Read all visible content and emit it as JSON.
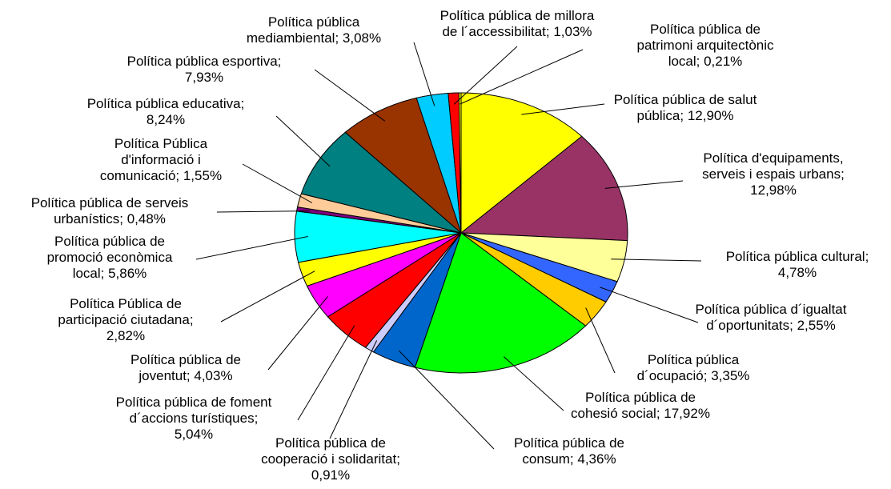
{
  "chart_data": {
    "type": "pie",
    "title": "",
    "legend": "none",
    "start_angle_deg": 90,
    "direction": "clockwise",
    "slices": [
      {
        "label_lines": [
          "Política  pública de salut",
          "pública; 12,90%"
        ],
        "value": 12.9,
        "color": "#FFFF00"
      },
      {
        "label_lines": [
          "Política d'equipaments,",
          "serveis i espais urbans;",
          "12,98%"
        ],
        "value": 12.98,
        "color": "#993366"
      },
      {
        "label_lines": [
          "Política pública cultural;",
          "4,78%"
        ],
        "value": 4.78,
        "color": "#FFFF99"
      },
      {
        "label_lines": [
          "Política pública d´igualtat",
          "d´oportunitats; 2,55%"
        ],
        "value": 2.55,
        "color": "#3366FF"
      },
      {
        "label_lines": [
          "Política pública",
          "d´ocupació; 3,35%"
        ],
        "value": 3.35,
        "color": "#FFCC00"
      },
      {
        "label_lines": [
          "Política pública de",
          "cohesió social; 17,92%"
        ],
        "value": 17.92,
        "color": "#00FF00"
      },
      {
        "label_lines": [
          "Política pública de",
          "consum; 4,36%"
        ],
        "value": 4.36,
        "color": "#0066CC"
      },
      {
        "label_lines": [
          "Política pública de",
          "cooperació i solidaritat;",
          "0,91%"
        ],
        "value": 0.91,
        "color": "#CCCCFF"
      },
      {
        "label_lines": [
          "Política pública de foment",
          "d´accions turístiques;",
          "5,04%"
        ],
        "value": 5.04,
        "color": "#FF0000"
      },
      {
        "label_lines": [
          "Política pública de",
          "joventut; 4,03%"
        ],
        "value": 4.03,
        "color": "#FF00FF"
      },
      {
        "label_lines": [
          "Política Pública de",
          "participació ciutadana;",
          "2,82%"
        ],
        "value": 2.82,
        "color": "#FFFF00"
      },
      {
        "label_lines": [
          "Política pública de",
          "promoció econòmica",
          "local; 5,86%"
        ],
        "value": 5.86,
        "color": "#00FFFF"
      },
      {
        "label_lines": [
          "Política pública de serveis",
          "urbanístics; 0,48%"
        ],
        "value": 0.48,
        "color": "#800080"
      },
      {
        "label_lines": [
          "Política Pública",
          "d'informació i",
          "comunicació; 1,55%"
        ],
        "value": 1.55,
        "color": "#FFCC99"
      },
      {
        "label_lines": [
          "Política pública educativa;",
          "8,24%"
        ],
        "value": 8.24,
        "color": "#008080"
      },
      {
        "label_lines": [
          "Política pública esportiva;",
          "7,93%"
        ],
        "value": 7.93,
        "color": "#993300"
      },
      {
        "label_lines": [
          "Política pública",
          "mediambiental; 3,08%"
        ],
        "value": 3.08,
        "color": "#00CCFF"
      },
      {
        "label_lines": [
          "Política pública de millora",
          "de l´accessibilitat; 1,03%"
        ],
        "value": 1.03,
        "color": "#FF0000"
      },
      {
        "label_lines": [
          "Política pública de",
          "patrimoni arquitectònic",
          "local; 0,21%"
        ],
        "value": 0.21,
        "color": "#FFFF00"
      }
    ]
  }
}
